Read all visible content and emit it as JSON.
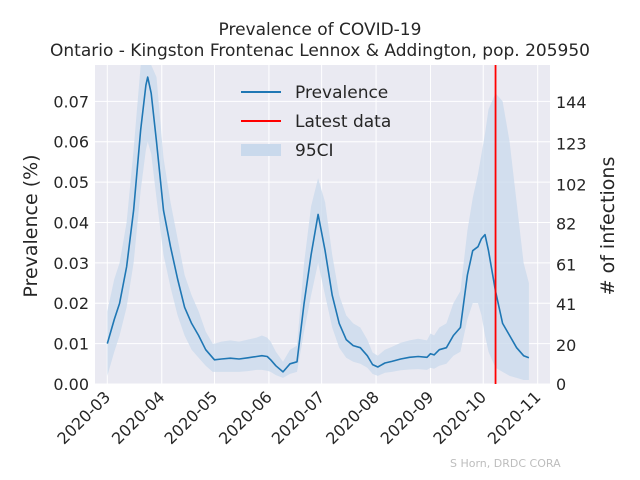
{
  "chart_data": {
    "type": "line",
    "title": "Prevalence of COVID-19",
    "subtitle": "Ontario - Kingston Frontenac Lennox & Addington, pop. 205950",
    "ylabel": "Prevalence (%)",
    "y2label": "# of infections",
    "credit": "S Horn, DRDC CORA",
    "xlim": [
      "2020-02-23",
      "2020-11-08"
    ],
    "ylim": [
      0,
      0.079
    ],
    "y2lim": [
      0,
      163
    ],
    "x_ticks": [
      "2020-03",
      "2020-04",
      "2020-05",
      "2020-06",
      "2020-07",
      "2020-08",
      "2020-09",
      "2020-10",
      "2020-11"
    ],
    "y_ticks": [
      "0.00",
      "0.01",
      "0.02",
      "0.03",
      "0.04",
      "0.05",
      "0.06",
      "0.07"
    ],
    "y2_ticks": [
      "0",
      "20",
      "41",
      "61",
      "82",
      "102",
      "123",
      "144"
    ],
    "grid": true,
    "legend_position": "top-center",
    "colors": {
      "prevalence": "#1f77b4",
      "latest": "#ff0000",
      "band": "#c9d9ec",
      "background": "#eaeaf2"
    },
    "series": [
      {
        "name": "Prevalence",
        "x": [
          "2020-03-01",
          "2020-03-05",
          "2020-03-08",
          "2020-03-12",
          "2020-03-16",
          "2020-03-20",
          "2020-03-23",
          "2020-03-24",
          "2020-03-26",
          "2020-03-29",
          "2020-04-02",
          "2020-04-06",
          "2020-04-10",
          "2020-04-14",
          "2020-04-18",
          "2020-04-22",
          "2020-04-26",
          "2020-04-30",
          "2020-05-01",
          "2020-05-05",
          "2020-05-10",
          "2020-05-15",
          "2020-05-20",
          "2020-05-25",
          "2020-05-28",
          "2020-05-31",
          "2020-06-02",
          "2020-06-05",
          "2020-06-09",
          "2020-06-13",
          "2020-06-17",
          "2020-06-21",
          "2020-06-25",
          "2020-06-29",
          "2020-07-03",
          "2020-07-07",
          "2020-07-11",
          "2020-07-15",
          "2020-07-19",
          "2020-07-23",
          "2020-07-27",
          "2020-07-30",
          "2020-08-02",
          "2020-08-06",
          "2020-08-10",
          "2020-08-15",
          "2020-08-20",
          "2020-08-25",
          "2020-08-30",
          "2020-09-01",
          "2020-09-03",
          "2020-09-06",
          "2020-09-10",
          "2020-09-14",
          "2020-09-18",
          "2020-09-22",
          "2020-09-25",
          "2020-09-28",
          "2020-09-30",
          "2020-10-02",
          "2020-10-04",
          "2020-10-08",
          "2020-10-12",
          "2020-10-16",
          "2020-10-20",
          "2020-10-24",
          "2020-10-27"
        ],
        "values": [
          0.01,
          0.016,
          0.02,
          0.029,
          0.043,
          0.063,
          0.074,
          0.076,
          0.072,
          0.06,
          0.043,
          0.034,
          0.026,
          0.019,
          0.015,
          0.012,
          0.0085,
          0.0065,
          0.006,
          0.0062,
          0.0064,
          0.0062,
          0.0065,
          0.0068,
          0.007,
          0.0068,
          0.006,
          0.0045,
          0.003,
          0.005,
          0.0055,
          0.02,
          0.032,
          0.042,
          0.033,
          0.022,
          0.015,
          0.011,
          0.0095,
          0.009,
          0.007,
          0.0048,
          0.0042,
          0.0052,
          0.0056,
          0.0062,
          0.0066,
          0.0068,
          0.0066,
          0.0075,
          0.0072,
          0.0085,
          0.009,
          0.012,
          0.014,
          0.027,
          0.033,
          0.034,
          0.036,
          0.037,
          0.033,
          0.023,
          0.015,
          0.012,
          0.009,
          0.007,
          0.0065
        ]
      }
    ],
    "band": {
      "name": "95CI",
      "x": [
        "2020-03-01",
        "2020-03-05",
        "2020-03-08",
        "2020-03-12",
        "2020-03-16",
        "2020-03-20",
        "2020-03-23",
        "2020-03-24",
        "2020-03-26",
        "2020-03-29",
        "2020-04-02",
        "2020-04-06",
        "2020-04-10",
        "2020-04-14",
        "2020-04-18",
        "2020-04-22",
        "2020-04-26",
        "2020-04-30",
        "2020-05-01",
        "2020-05-05",
        "2020-05-10",
        "2020-05-15",
        "2020-05-20",
        "2020-05-25",
        "2020-05-28",
        "2020-05-31",
        "2020-06-02",
        "2020-06-05",
        "2020-06-09",
        "2020-06-13",
        "2020-06-17",
        "2020-06-21",
        "2020-06-25",
        "2020-06-29",
        "2020-07-03",
        "2020-07-07",
        "2020-07-11",
        "2020-07-15",
        "2020-07-19",
        "2020-07-23",
        "2020-07-27",
        "2020-07-30",
        "2020-08-02",
        "2020-08-06",
        "2020-08-10",
        "2020-08-15",
        "2020-08-20",
        "2020-08-25",
        "2020-08-30",
        "2020-09-01",
        "2020-09-03",
        "2020-09-06",
        "2020-09-10",
        "2020-09-14",
        "2020-09-18",
        "2020-09-22",
        "2020-09-25",
        "2020-09-28",
        "2020-09-30",
        "2020-10-02",
        "2020-10-04",
        "2020-10-08",
        "2020-10-12",
        "2020-10-16",
        "2020-10-20",
        "2020-10-24",
        "2020-10-27"
      ],
      "lower": [
        0.002,
        0.008,
        0.012,
        0.019,
        0.03,
        0.048,
        0.058,
        0.06,
        0.057,
        0.046,
        0.032,
        0.024,
        0.017,
        0.012,
        0.0085,
        0.0065,
        0.0045,
        0.003,
        0.003,
        0.003,
        0.003,
        0.003,
        0.0032,
        0.0035,
        0.0035,
        0.0033,
        0.003,
        0.0022,
        0.0015,
        0.0025,
        0.003,
        0.013,
        0.022,
        0.03,
        0.022,
        0.014,
        0.009,
        0.0065,
        0.0055,
        0.005,
        0.004,
        0.0025,
        0.002,
        0.0028,
        0.003,
        0.0034,
        0.0036,
        0.0037,
        0.0035,
        0.004,
        0.0038,
        0.0045,
        0.005,
        0.007,
        0.008,
        0.016,
        0.02,
        0.02,
        0.017,
        0.012,
        0.008,
        0.004,
        0.003,
        0.002,
        0.0015,
        0.001,
        0.001
      ],
      "upper": [
        0.018,
        0.026,
        0.03,
        0.04,
        0.058,
        0.082,
        0.092,
        0.094,
        0.089,
        0.076,
        0.056,
        0.045,
        0.036,
        0.027,
        0.022,
        0.018,
        0.013,
        0.01,
        0.01,
        0.0105,
        0.0108,
        0.0105,
        0.011,
        0.0115,
        0.012,
        0.0115,
        0.0105,
        0.008,
        0.0055,
        0.0085,
        0.0095,
        0.03,
        0.044,
        0.051,
        0.045,
        0.032,
        0.022,
        0.017,
        0.015,
        0.014,
        0.011,
        0.0078,
        0.007,
        0.0085,
        0.0092,
        0.0102,
        0.0108,
        0.0112,
        0.0108,
        0.0125,
        0.012,
        0.014,
        0.015,
        0.02,
        0.023,
        0.038,
        0.046,
        0.052,
        0.057,
        0.062,
        0.068,
        0.072,
        0.07,
        0.06,
        0.045,
        0.03,
        0.025
      ]
    },
    "latest_data": {
      "name": "Latest data",
      "x": "2020-10-08"
    }
  }
}
